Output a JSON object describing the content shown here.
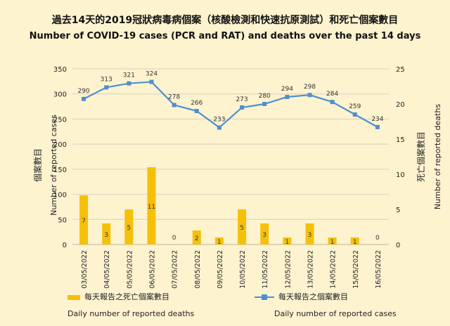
{
  "titles": {
    "zh": "過去14天的2019冠狀病毒病個案（核酸檢測和快速抗原測試）和死亡個案數目",
    "en": "Number of COVID-19 cases (PCR and RAT) and deaths over the past 14 days"
  },
  "colors": {
    "background": "#fdf3cf",
    "bars": "#f5c00a",
    "line": "#4f8fd0",
    "grid": "#d8d2bd"
  },
  "chart_data": {
    "type": "bar+line",
    "categories": [
      "03/05/2022",
      "04/05/2022",
      "05/05/2022",
      "06/05/2022",
      "07/05/2022",
      "08/05/2022",
      "09/05/2022",
      "10/05/2022",
      "11/05/2022",
      "12/05/2022",
      "13/05/2022",
      "14/05/2022",
      "15/05/2022",
      "16/05/2022"
    ],
    "series": [
      {
        "name": "每天報告之死亡個案數目 Daily number of reported deaths",
        "type": "bar",
        "axis": "right",
        "values": [
          7,
          3,
          5,
          11,
          0,
          2,
          1,
          5,
          3,
          1,
          3,
          1,
          1,
          0
        ]
      },
      {
        "name": "每天報告之個案數目 Daily number of reported cases",
        "type": "line",
        "axis": "left",
        "values": [
          290,
          313,
          321,
          324,
          278,
          266,
          233,
          273,
          280,
          294,
          298,
          284,
          259,
          234
        ]
      }
    ],
    "y_left": {
      "label_zh": "個案數目",
      "label_en": "Number of reported cases",
      "lim": [
        0,
        350
      ],
      "ticks": [
        0,
        50,
        100,
        150,
        200,
        250,
        300,
        350
      ]
    },
    "y_right": {
      "label_zh": "死亡個案數目",
      "label_en": "Number of reported deaths",
      "lim": [
        0,
        25
      ],
      "ticks": [
        0,
        5,
        10,
        15,
        20,
        25
      ]
    },
    "grid": true,
    "legend_position": "bottom"
  },
  "legend": {
    "deaths_zh": "每天報告之死亡個案數目",
    "deaths_en": "Daily number of reported deaths",
    "cases_zh": "每天報告之個案數目",
    "cases_en": "Daily number of reported cases"
  }
}
